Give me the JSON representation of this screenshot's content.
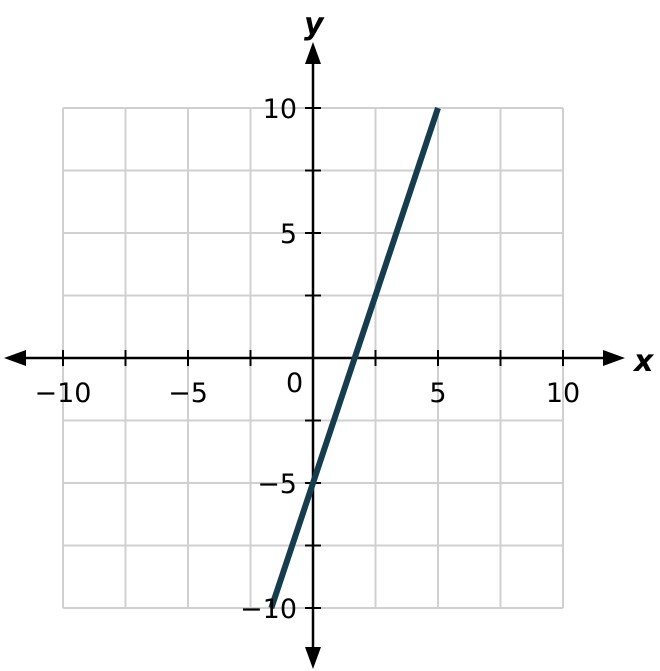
{
  "chart_data": {
    "type": "line",
    "title": "",
    "xlabel": "x",
    "ylabel": "y",
    "xlim": [
      -10,
      10
    ],
    "ylim": [
      -10,
      10
    ],
    "grid": true,
    "grid_step": 2.5,
    "x_ticks": [
      -10,
      -5,
      5,
      10
    ],
    "y_ticks": [
      10,
      5,
      -5,
      -10
    ],
    "x_tick_labels": [
      "−10",
      "−5",
      "5",
      "10"
    ],
    "y_tick_labels": [
      "10",
      "5",
      "−5",
      "−10"
    ],
    "origin_label": "0",
    "series": [
      {
        "points": [
          [
            -1.6667,
            -10
          ],
          [
            5,
            10
          ]
        ],
        "equation": "y = 3x − 5",
        "color": "#163d4d"
      }
    ],
    "colors": {
      "grid": "#d0d0d0",
      "axis": "#000000"
    }
  }
}
